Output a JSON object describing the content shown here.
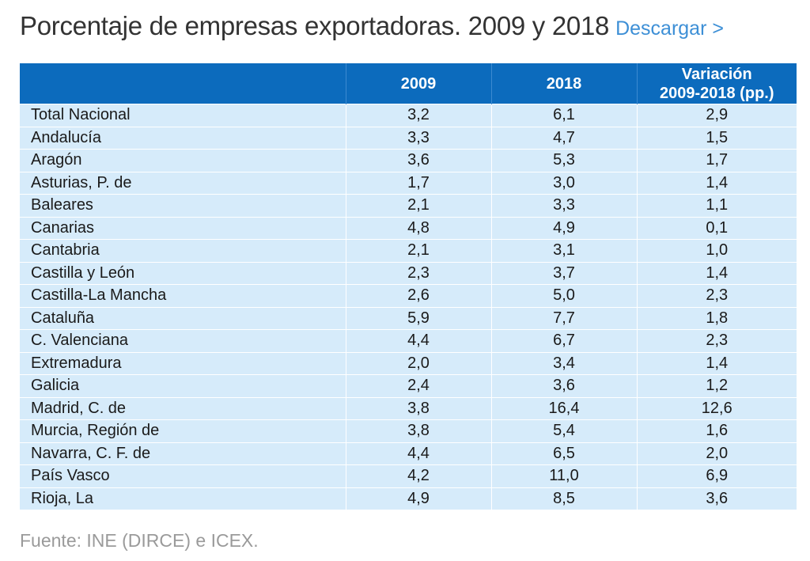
{
  "title": "Porcentaje de empresas exportadoras. 2009 y 2018",
  "download_label": "Descargar >",
  "table": {
    "headers": [
      "",
      "2009",
      "2018",
      "Variación\n2009-2018 (pp.)"
    ],
    "rows": [
      [
        "Total Nacional",
        "3,2",
        "6,1",
        "2,9"
      ],
      [
        "Andalucía",
        "3,3",
        "4,7",
        "1,5"
      ],
      [
        "Aragón",
        "3,6",
        "5,3",
        "1,7"
      ],
      [
        "Asturias, P. de",
        "1,7",
        "3,0",
        "1,4"
      ],
      [
        "Baleares",
        "2,1",
        "3,3",
        "1,1"
      ],
      [
        "Canarias",
        "4,8",
        "4,9",
        "0,1"
      ],
      [
        "Cantabria",
        "2,1",
        "3,1",
        "1,0"
      ],
      [
        "Castilla y León",
        "2,3",
        "3,7",
        "1,4"
      ],
      [
        "Castilla-La Mancha",
        "2,6",
        "5,0",
        "2,3"
      ],
      [
        "Cataluña",
        "5,9",
        "7,7",
        "1,8"
      ],
      [
        "C. Valenciana",
        "4,4",
        "6,7",
        "2,3"
      ],
      [
        "Extremadura",
        "2,0",
        "3,4",
        "1,4"
      ],
      [
        "Galicia",
        "2,4",
        "3,6",
        "1,2"
      ],
      [
        "Madrid, C. de",
        "3,8",
        "16,4",
        "12,6"
      ],
      [
        "Murcia, Región de",
        "3,8",
        "5,4",
        "1,6"
      ],
      [
        "Navarra, C. F. de",
        "4,4",
        "6,5",
        "2,0"
      ],
      [
        "País Vasco",
        "4,2",
        "11,0",
        "6,9"
      ],
      [
        "Rioja, La",
        "4,9",
        "8,5",
        "3,6"
      ]
    ]
  },
  "source": "Fuente: INE (DIRCE) e ICEX.",
  "colors": {
    "header_bg": "#0c6bbd",
    "row_bg": "#d6ebfa",
    "link": "#3d8fd6",
    "title": "#333333",
    "source": "#9a9a9a"
  }
}
